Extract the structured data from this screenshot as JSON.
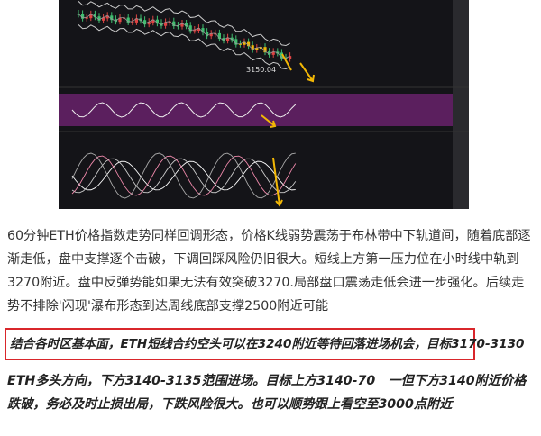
{
  "chart_image": {
    "price_label": "3150.04"
  },
  "article": {
    "paragraph_1": "60分钟ETH价格指数走势同样回调形态，价格K线弱势震荡于布林带中下轨道间，随着底部逐渐走低，盘中支撑逐个击破，下调回踩风险仍旧很大。短线上方第一压力位在小时线中轨到3270附近。盘中反弹势能如果无法有效突破3270.局部盘口震荡走低会进一步强化。后续走势不排除'闪现'瀑布形态到达周线底部支撑2500附近可能",
    "highlight": "结合各时区基本面，ETH短线合约空头可以在3240附近等待回落进场机会，目标3170-3130",
    "paragraph_2": "ETH多头方向，下方3140-3135范围进场。目标上方3140-70　一但下方3140附近价格跌破，务必及时止损出局，下跌风险很大。也可以顺势跟上看空至3000点附近"
  }
}
